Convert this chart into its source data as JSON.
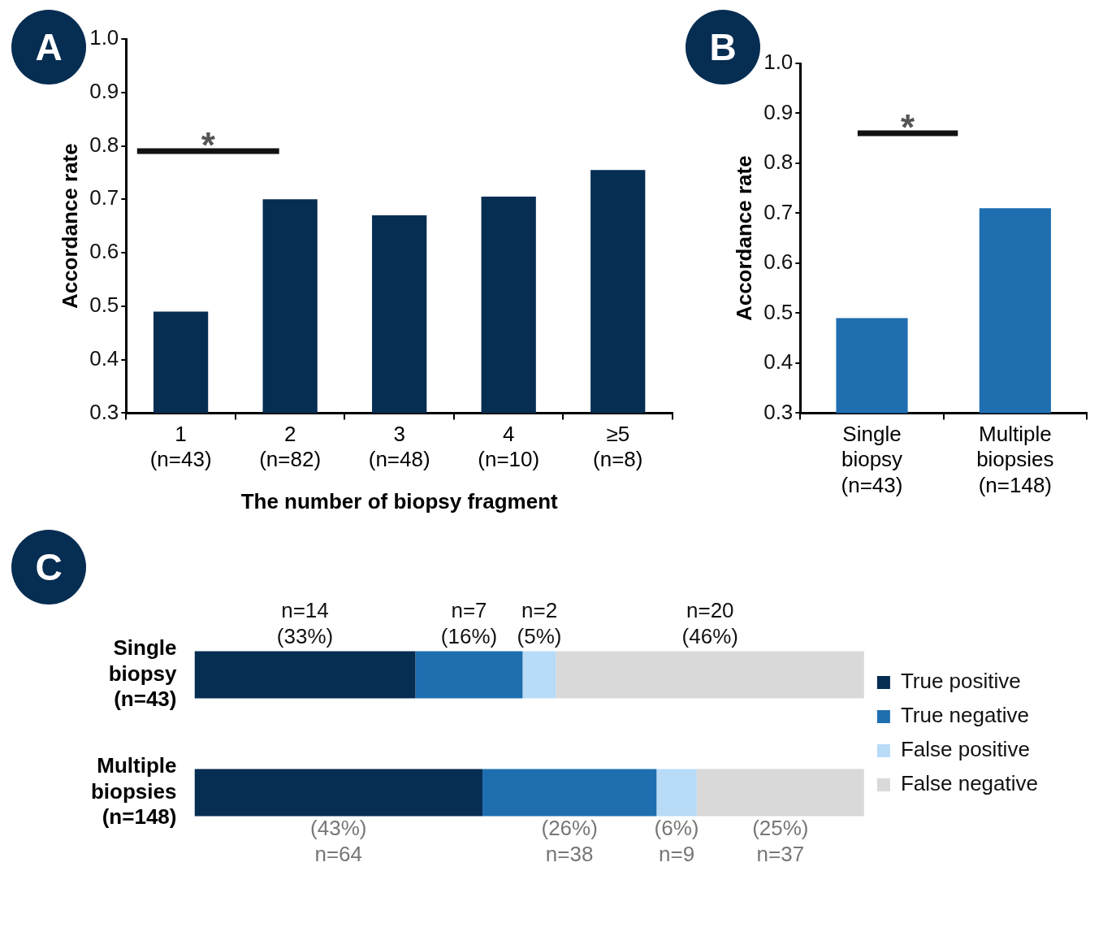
{
  "chart_data": [
    {
      "type": "bar",
      "title": "A",
      "xlabel": "The number of biopsy fragment",
      "ylabel": "Accordance rate",
      "categories": [
        "1\n(n=43)",
        "2\n(n=82)",
        "3\n(n=48)",
        "4\n(n=10)",
        "≥5\n(n=8)"
      ],
      "values": [
        0.49,
        0.7,
        0.67,
        0.705,
        0.755
      ],
      "color": "#062d52",
      "ylim": [
        0.3,
        1
      ],
      "yticks": [
        0.3,
        0.4,
        0.5,
        0.6,
        0.7,
        0.8,
        0.9,
        {
          "value": 1,
          "label": "1.0"
        }
      ],
      "annotations": [
        "*"
      ]
    },
    {
      "type": "bar",
      "title": "B",
      "ylabel": "Accordance rate",
      "categories": [
        "Single\nbiopsy\n(n=43)",
        "Multiple\nbiopsies\n(n=148)"
      ],
      "values": [
        0.49,
        0.71
      ],
      "color": "#1f6eb0",
      "ylim": [
        0.3,
        1
      ],
      "yticks": [
        0.3,
        0.4,
        0.5,
        0.6,
        0.7,
        0.8,
        0.9,
        {
          "value": 1,
          "label": "1.0"
        }
      ],
      "annotations": [
        "*"
      ]
    },
    {
      "type": "bar",
      "title": "C",
      "orientation": "horizontal",
      "stacked": true,
      "legend": "right",
      "tick_labels": "y",
      "annotations": [
        "n=14",
        "n=64",
        "n=7",
        "n=38",
        "n=2",
        "n=9",
        "n=20",
        "n=37"
      ],
      "categories": [
        "Single\nbiopsy\n(n=43)",
        "Multiple\nbiopsies\n(n=148)"
      ],
      "series": [
        {
          "name": "True positive",
          "color": "#062d52",
          "values": [
            33,
            43
          ],
          "value_labels": [
            "(33%)",
            "(43%)"
          ]
        },
        {
          "name": "True negative",
          "color": "#1f6eb0",
          "values": [
            16,
            26
          ],
          "value_labels": [
            "(16%)",
            "(26%)"
          ]
        },
        {
          "name": "False positive",
          "color": "#b8dbf7",
          "values": [
            5,
            6
          ],
          "value_labels": [
            "(5%)",
            "(6%)"
          ]
        },
        {
          "name": "False negative",
          "color": "#d9d9d9",
          "values": [
            46,
            25
          ],
          "value_labels": [
            "(46%)",
            "(25%)"
          ]
        }
      ]
    }
  ]
}
